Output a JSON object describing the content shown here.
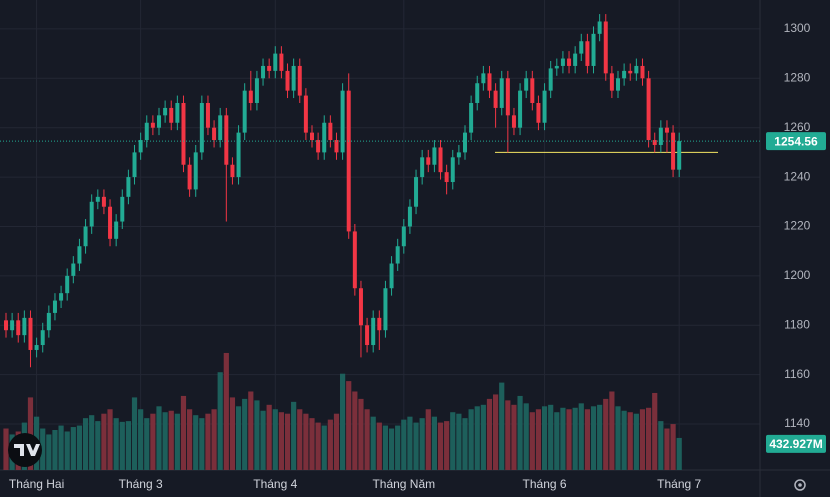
{
  "chart_data": {
    "type": "candlestick",
    "categories": [
      null,
      null,
      null,
      null,
      null,
      "Tháng Hai",
      null,
      null,
      null,
      null,
      null,
      null,
      null,
      null,
      null,
      null,
      null,
      null,
      null,
      null,
      null,
      null,
      "Tháng 3",
      null,
      null,
      null,
      null,
      null,
      null,
      null,
      null,
      null,
      null,
      null,
      null,
      null,
      null,
      null,
      null,
      null,
      null,
      null,
      null,
      null,
      "Tháng 4",
      null,
      null,
      null,
      null,
      null,
      null,
      null,
      null,
      null,
      null,
      null,
      null,
      null,
      null,
      null,
      null,
      null,
      null,
      null,
      null,
      "Tháng Năm",
      null,
      null,
      null,
      null,
      null,
      null,
      null,
      null,
      null,
      null,
      null,
      null,
      null,
      null,
      null,
      null,
      null,
      null,
      null,
      null,
      null,
      null,
      "Tháng 6",
      null,
      null,
      null,
      null,
      null,
      null,
      null,
      null,
      null,
      null,
      null,
      null,
      null,
      null,
      null,
      null,
      null,
      null,
      null,
      null,
      null,
      "Tháng 7"
    ],
    "open": [
      1182,
      1178,
      1182,
      1176,
      1183,
      1170,
      1172,
      1178,
      1185,
      1190,
      1193,
      1200,
      1205,
      1212,
      1220,
      1230,
      1232,
      1228,
      1215,
      1222,
      1232,
      1240,
      1250,
      1255,
      1262,
      1260,
      1265,
      1268,
      1262,
      1270,
      1245,
      1235,
      1250,
      1270,
      1260,
      1255,
      1265,
      1245,
      1240,
      1258,
      1275,
      1270,
      1280,
      1285,
      1283,
      1290,
      1283,
      1275,
      1285,
      1273,
      1258,
      1255,
      1250,
      1262,
      1255,
      1250,
      1275,
      1218,
      1195,
      1180,
      1172,
      1183,
      1178,
      1195,
      1205,
      1212,
      1220,
      1228,
      1240,
      1248,
      1245,
      1252,
      1242,
      1238,
      1248,
      1250,
      1258,
      1270,
      1278,
      1282,
      1275,
      1268,
      1280,
      1265,
      1260,
      1275,
      1280,
      1270,
      1262,
      1275,
      1284,
      1285,
      1288,
      1285,
      1290,
      1295,
      1285,
      1298,
      1303,
      1282,
      1275,
      1280,
      1283,
      1282,
      1285,
      1280,
      1255,
      1253,
      1260,
      1258,
      1243
    ],
    "high": [
      1185,
      1185,
      1185,
      1186,
      1186,
      1175,
      1181,
      1188,
      1193,
      1196,
      1203,
      1208,
      1215,
      1223,
      1233,
      1235,
      1235,
      1231,
      1225,
      1235,
      1243,
      1253,
      1258,
      1265,
      1265,
      1268,
      1271,
      1271,
      1273,
      1273,
      1248,
      1253,
      1273,
      1273,
      1263,
      1268,
      1268,
      1248,
      1261,
      1278,
      1283,
      1283,
      1288,
      1288,
      1293,
      1293,
      1286,
      1288,
      1288,
      1276,
      1261,
      1258,
      1265,
      1265,
      1258,
      1278,
      1282,
      1221,
      1198,
      1183,
      1186,
      1186,
      1198,
      1208,
      1215,
      1223,
      1231,
      1243,
      1251,
      1251,
      1255,
      1255,
      1245,
      1251,
      1253,
      1261,
      1273,
      1281,
      1285,
      1285,
      1278,
      1283,
      1283,
      1268,
      1278,
      1283,
      1283,
      1273,
      1278,
      1287,
      1288,
      1291,
      1291,
      1293,
      1298,
      1298,
      1301,
      1306,
      1306,
      1285,
      1283,
      1286,
      1286,
      1288,
      1288,
      1283,
      1258,
      1263,
      1263,
      1261,
      1258
    ],
    "low": [
      1175,
      1175,
      1173,
      1173,
      1163,
      1167,
      1169,
      1175,
      1182,
      1187,
      1190,
      1197,
      1202,
      1209,
      1217,
      1227,
      1225,
      1212,
      1212,
      1219,
      1229,
      1237,
      1247,
      1252,
      1257,
      1257,
      1262,
      1259,
      1259,
      1242,
      1232,
      1232,
      1247,
      1257,
      1252,
      1252,
      1222,
      1237,
      1237,
      1255,
      1267,
      1267,
      1277,
      1280,
      1280,
      1280,
      1272,
      1272,
      1270,
      1255,
      1252,
      1247,
      1247,
      1252,
      1247,
      1247,
      1215,
      1192,
      1167,
      1169,
      1169,
      1170,
      1175,
      1192,
      1202,
      1209,
      1217,
      1225,
      1237,
      1242,
      1242,
      1239,
      1233,
      1235,
      1245,
      1247,
      1255,
      1267,
      1275,
      1272,
      1260,
      1265,
      1250,
      1257,
      1257,
      1272,
      1267,
      1259,
      1259,
      1272,
      1281,
      1282,
      1282,
      1282,
      1287,
      1282,
      1282,
      1295,
      1279,
      1272,
      1272,
      1277,
      1279,
      1279,
      1277,
      1252,
      1250,
      1250,
      1250,
      1240,
      1240
    ],
    "close": [
      1178,
      1182,
      1176,
      1183,
      1170,
      1172,
      1178,
      1185,
      1190,
      1193,
      1200,
      1205,
      1212,
      1220,
      1230,
      1232,
      1228,
      1215,
      1222,
      1232,
      1240,
      1250,
      1255,
      1262,
      1260,
      1265,
      1268,
      1262,
      1270,
      1245,
      1235,
      1250,
      1270,
      1260,
      1255,
      1265,
      1245,
      1240,
      1258,
      1275,
      1270,
      1280,
      1285,
      1283,
      1290,
      1283,
      1275,
      1285,
      1273,
      1258,
      1255,
      1250,
      1262,
      1255,
      1250,
      1275,
      1218,
      1195,
      1180,
      1172,
      1183,
      1178,
      1195,
      1205,
      1212,
      1220,
      1228,
      1240,
      1248,
      1245,
      1252,
      1242,
      1238,
      1248,
      1250,
      1258,
      1270,
      1278,
      1282,
      1275,
      1268,
      1280,
      1265,
      1260,
      1275,
      1280,
      1270,
      1262,
      1275,
      1284,
      1285,
      1288,
      1285,
      1290,
      1295,
      1285,
      1298,
      1303,
      1282,
      1275,
      1280,
      1283,
      1282,
      1285,
      1280,
      1255,
      1253,
      1260,
      1258,
      1243,
      1254.56
    ],
    "up_color": "#22ab94",
    "down_color": "#f23645",
    "volume": {
      "values": [
        560,
        480,
        520,
        640,
        980,
        720,
        560,
        480,
        540,
        600,
        520,
        580,
        600,
        700,
        740,
        660,
        760,
        820,
        700,
        650,
        660,
        980,
        820,
        700,
        760,
        860,
        780,
        800,
        760,
        1000,
        820,
        740,
        700,
        760,
        820,
        1320,
        1580,
        980,
        860,
        960,
        1060,
        940,
        800,
        880,
        820,
        780,
        760,
        920,
        820,
        760,
        700,
        640,
        600,
        680,
        760,
        1300,
        1200,
        1060,
        960,
        820,
        720,
        640,
        600,
        560,
        600,
        680,
        720,
        640,
        700,
        820,
        720,
        640,
        660,
        780,
        760,
        700,
        820,
        860,
        880,
        960,
        1020,
        1180,
        940,
        880,
        1000,
        900,
        780,
        820,
        860,
        880,
        780,
        840,
        820,
        840,
        900,
        820,
        860,
        880,
        960,
        1060,
        860,
        800,
        780,
        760,
        820,
        840,
        1040,
        660,
        560,
        620,
        432.927
      ],
      "value_labels": [
        null,
        null,
        null,
        null,
        null,
        null,
        null,
        null,
        null,
        null,
        null,
        null,
        null,
        null,
        null,
        null,
        null,
        null,
        null,
        null,
        null,
        null,
        null,
        null,
        null,
        null,
        null,
        null,
        null,
        null,
        null,
        null,
        null,
        null,
        null,
        null,
        null,
        null,
        null,
        null,
        null,
        null,
        null,
        null,
        null,
        null,
        null,
        null,
        null,
        null,
        null,
        null,
        null,
        null,
        null,
        null,
        null,
        null,
        null,
        null,
        null,
        null,
        null,
        null,
        null,
        null,
        null,
        null,
        null,
        null,
        null,
        null,
        null,
        null,
        null,
        null,
        null,
        null,
        null,
        null,
        null,
        null,
        null,
        null,
        null,
        null,
        null,
        null,
        null,
        null,
        null,
        null,
        null,
        null,
        null,
        null,
        null,
        null,
        null,
        null,
        null,
        null,
        null,
        null,
        null,
        null,
        null,
        null,
        null,
        null,
        "432.927M"
      ],
      "ylim": [
        0,
        6345
      ],
      "up_color": "#1d5f5b",
      "down_color": "#7b2f3b"
    },
    "hline": {
      "value": 1250,
      "color": "#f5e663"
    },
    "ylim": [
      1121.4,
      1311.7
    ],
    "yticks": [
      1140,
      1160,
      1180,
      1200,
      1220,
      1240,
      1260,
      1280,
      1300
    ],
    "grid": true
  }
}
